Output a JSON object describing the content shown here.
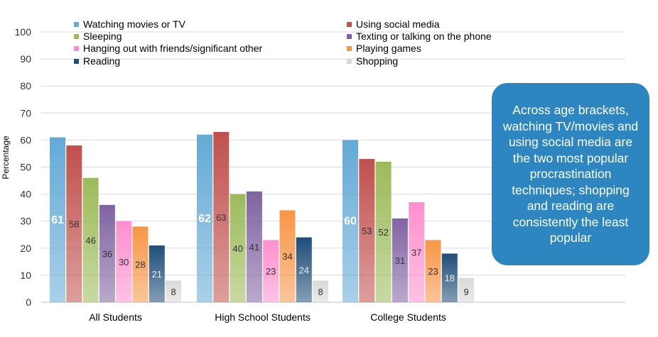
{
  "chart_data": {
    "type": "bar",
    "title": "",
    "xlabel": "",
    "ylabel": "Percentage",
    "ylim": [
      0,
      100
    ],
    "yticks": [
      0,
      10,
      20,
      30,
      40,
      50,
      60,
      70,
      80,
      90,
      100
    ],
    "grid": true,
    "legend_position": "top",
    "categories": [
      "All Students",
      "High School Students",
      "College Students"
    ],
    "series": [
      {
        "name": "Watching movies or TV",
        "values": [
          61,
          62,
          60
        ],
        "color": "#63aad6"
      },
      {
        "name": "Using social media",
        "values": [
          58,
          63,
          53
        ],
        "color": "#c0504d"
      },
      {
        "name": "Sleeping",
        "values": [
          46,
          40,
          52
        ],
        "color": "#9bbb59"
      },
      {
        "name": "Texting or talking on the phone",
        "values": [
          36,
          41,
          31
        ],
        "color": "#8064a2"
      },
      {
        "name": "Hanging out with friends/significant other",
        "values": [
          30,
          23,
          37
        ],
        "color": "#ff8fcf"
      },
      {
        "name": "Playing games",
        "values": [
          28,
          34,
          23
        ],
        "color": "#f79646"
      },
      {
        "name": "Reading",
        "values": [
          21,
          24,
          18
        ],
        "color": "#1f4e79"
      },
      {
        "name": "Shopping",
        "values": [
          8,
          8,
          9
        ],
        "color": "#d9d9d9"
      }
    ]
  },
  "callout": {
    "text": "Across age brackets, watching TV/movies and using social media are the two most popular procrastination techniques; shopping and reading are consistently the least popular"
  }
}
